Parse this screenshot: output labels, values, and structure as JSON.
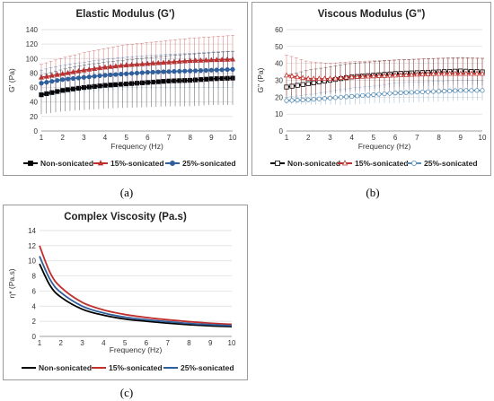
{
  "chart_data": [
    {
      "id": "a",
      "type": "line",
      "title": "Elastic Modulus (G')",
      "xlabel": "Frequency (Hz)",
      "ylabel": "G' (Pa)",
      "xlim": [
        1,
        10
      ],
      "ylim": [
        0,
        140
      ],
      "yticks": [
        0,
        20,
        40,
        60,
        80,
        100,
        120,
        140
      ],
      "xticks": [
        1,
        2,
        3,
        4,
        5,
        6,
        7,
        8,
        9,
        10
      ],
      "marker_style": "filled",
      "legend_position": "bottom",
      "series": [
        {
          "name": "Non-sonicated",
          "color": "#000000",
          "x": [
            1,
            2,
            3,
            4,
            5,
            6,
            7,
            8,
            9,
            10
          ],
          "y": [
            50,
            56,
            60,
            63,
            65,
            67,
            69,
            70,
            72,
            73
          ],
          "err": [
            27,
            29,
            31,
            32,
            33,
            34,
            35,
            36,
            36,
            37
          ]
        },
        {
          "name": "15%-sonicated",
          "color": "#c0302c",
          "x": [
            1,
            2,
            3,
            4,
            5,
            6,
            7,
            8,
            9,
            10
          ],
          "y": [
            74,
            79,
            84,
            88,
            91,
            93,
            95,
            97,
            98,
            99
          ],
          "err": [
            18,
            22,
            24,
            26,
            28,
            29,
            30,
            31,
            32,
            33
          ]
        },
        {
          "name": "25%-sonicated",
          "color": "#2f5f9c",
          "x": [
            1,
            2,
            3,
            4,
            5,
            6,
            7,
            8,
            9,
            10
          ],
          "y": [
            66,
            71,
            74,
            77,
            79,
            81,
            82,
            83,
            84,
            85
          ],
          "err": [
            18,
            20,
            21,
            22,
            23,
            23,
            24,
            24,
            25,
            25
          ]
        }
      ]
    },
    {
      "id": "b",
      "type": "line",
      "title": "Viscous Modulus (G\")",
      "xlabel": "Frequency (Hz)",
      "ylabel": "G\" (Pa)",
      "xlim": [
        1,
        10
      ],
      "ylim": [
        0,
        60
      ],
      "yticks": [
        0,
        10,
        20,
        30,
        40,
        50,
        60
      ],
      "xticks": [
        1,
        2,
        3,
        4,
        5,
        6,
        7,
        8,
        9,
        10
      ],
      "marker_style": "open",
      "legend_position": "bottom",
      "series": [
        {
          "name": "Non-sonicated",
          "color": "#000000",
          "x": [
            1,
            2,
            3,
            4,
            5,
            6,
            7,
            8,
            9,
            10
          ],
          "y": [
            26,
            28,
            30,
            32,
            33,
            34,
            34.5,
            35,
            35.5,
            35
          ],
          "err": [
            7,
            8,
            8,
            8,
            8,
            8,
            8,
            8,
            8,
            8
          ]
        },
        {
          "name": "15%-sonicated",
          "color": "#c0302c",
          "x": [
            1,
            2,
            3,
            4,
            5,
            6,
            7,
            8,
            9,
            10
          ],
          "y": [
            33,
            31,
            31,
            32,
            32.5,
            33,
            33.5,
            34,
            34,
            34
          ],
          "err": [
            12,
            10,
            9,
            9,
            9,
            9,
            9,
            9,
            9,
            9
          ]
        },
        {
          "name": "25%-sonicated",
          "color": "#5b8fb8",
          "x": [
            1,
            2,
            3,
            4,
            5,
            6,
            7,
            8,
            9,
            10
          ],
          "y": [
            18,
            18.5,
            19.5,
            20.5,
            21.5,
            22.5,
            23,
            23.5,
            24,
            24
          ],
          "err": [
            2,
            3,
            4,
            5,
            5,
            6,
            6,
            6,
            6,
            6
          ]
        }
      ]
    },
    {
      "id": "c",
      "type": "line",
      "title": "Complex Viscosity (Pa.s)",
      "xlabel": "Frequency (Hz)",
      "ylabel": "η* (Pa.s)",
      "xlim": [
        1,
        10
      ],
      "ylim": [
        0,
        14
      ],
      "yticks": [
        0,
        2,
        4,
        6,
        8,
        10,
        12,
        14
      ],
      "xticks": [
        1,
        2,
        3,
        4,
        5,
        6,
        7,
        8,
        9,
        10
      ],
      "marker_style": "none",
      "legend_position": "bottom",
      "series": [
        {
          "name": "Non-sonicated",
          "color": "#000000",
          "x": [
            1,
            1.5,
            2,
            3,
            4,
            5,
            6,
            7,
            8,
            9,
            10
          ],
          "y": [
            9.6,
            6.7,
            5.2,
            3.6,
            2.8,
            2.3,
            2.0,
            1.75,
            1.55,
            1.4,
            1.3
          ]
        },
        {
          "name": "15%-sonicated",
          "color": "#c0302c",
          "x": [
            1,
            1.5,
            2,
            3,
            4,
            5,
            6,
            7,
            8,
            9,
            10
          ],
          "y": [
            12.0,
            8.4,
            6.5,
            4.5,
            3.5,
            2.9,
            2.5,
            2.2,
            1.95,
            1.75,
            1.6
          ]
        },
        {
          "name": "25%-sonicated",
          "color": "#2f5f9c",
          "x": [
            1,
            1.5,
            2,
            3,
            4,
            5,
            6,
            7,
            8,
            9,
            10
          ],
          "y": [
            10.6,
            7.5,
            5.8,
            4.0,
            3.1,
            2.55,
            2.2,
            1.95,
            1.72,
            1.55,
            1.42
          ]
        }
      ]
    }
  ],
  "captions": {
    "a": "(a)",
    "b": "(b)",
    "c": "(c)"
  }
}
